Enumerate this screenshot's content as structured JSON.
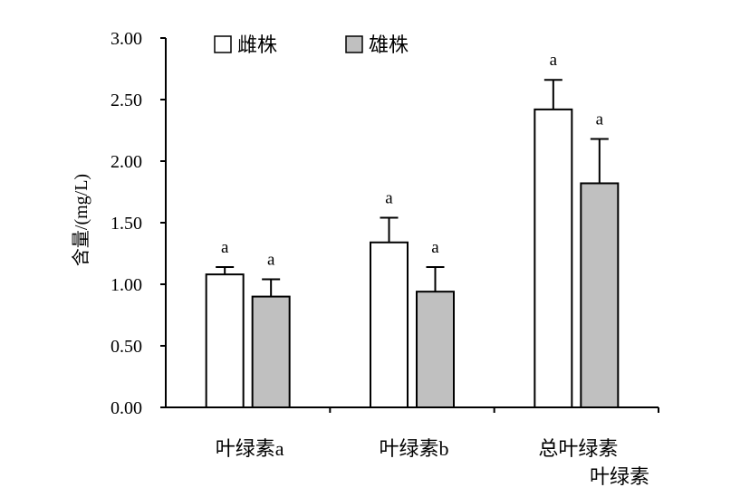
{
  "chart_data": {
    "type": "bar",
    "title": "",
    "xlabel": "",
    "ylabel": "含量/(mg/L)",
    "ylim": [
      0,
      3
    ],
    "yticks": [
      "0.00",
      "0.50",
      "1.00",
      "1.50",
      "2.00",
      "2.50",
      "3.00"
    ],
    "grid": false,
    "legend": "top-left",
    "categories": [
      "叶绿素a",
      "叶绿素b",
      "总叶绿素"
    ],
    "extra_label": "叶绿素",
    "series": [
      {
        "name": "雌株",
        "color": "#ffffff",
        "values": [
          1.08,
          1.34,
          2.42
        ],
        "errors": [
          0.06,
          0.2,
          0.24
        ],
        "significance": [
          "a",
          "a",
          "a"
        ]
      },
      {
        "name": "雄株",
        "color": "#c0c0c0",
        "values": [
          0.9,
          0.94,
          1.82
        ],
        "errors": [
          0.14,
          0.2,
          0.36
        ],
        "significance": [
          "a",
          "a",
          "a"
        ]
      }
    ]
  }
}
